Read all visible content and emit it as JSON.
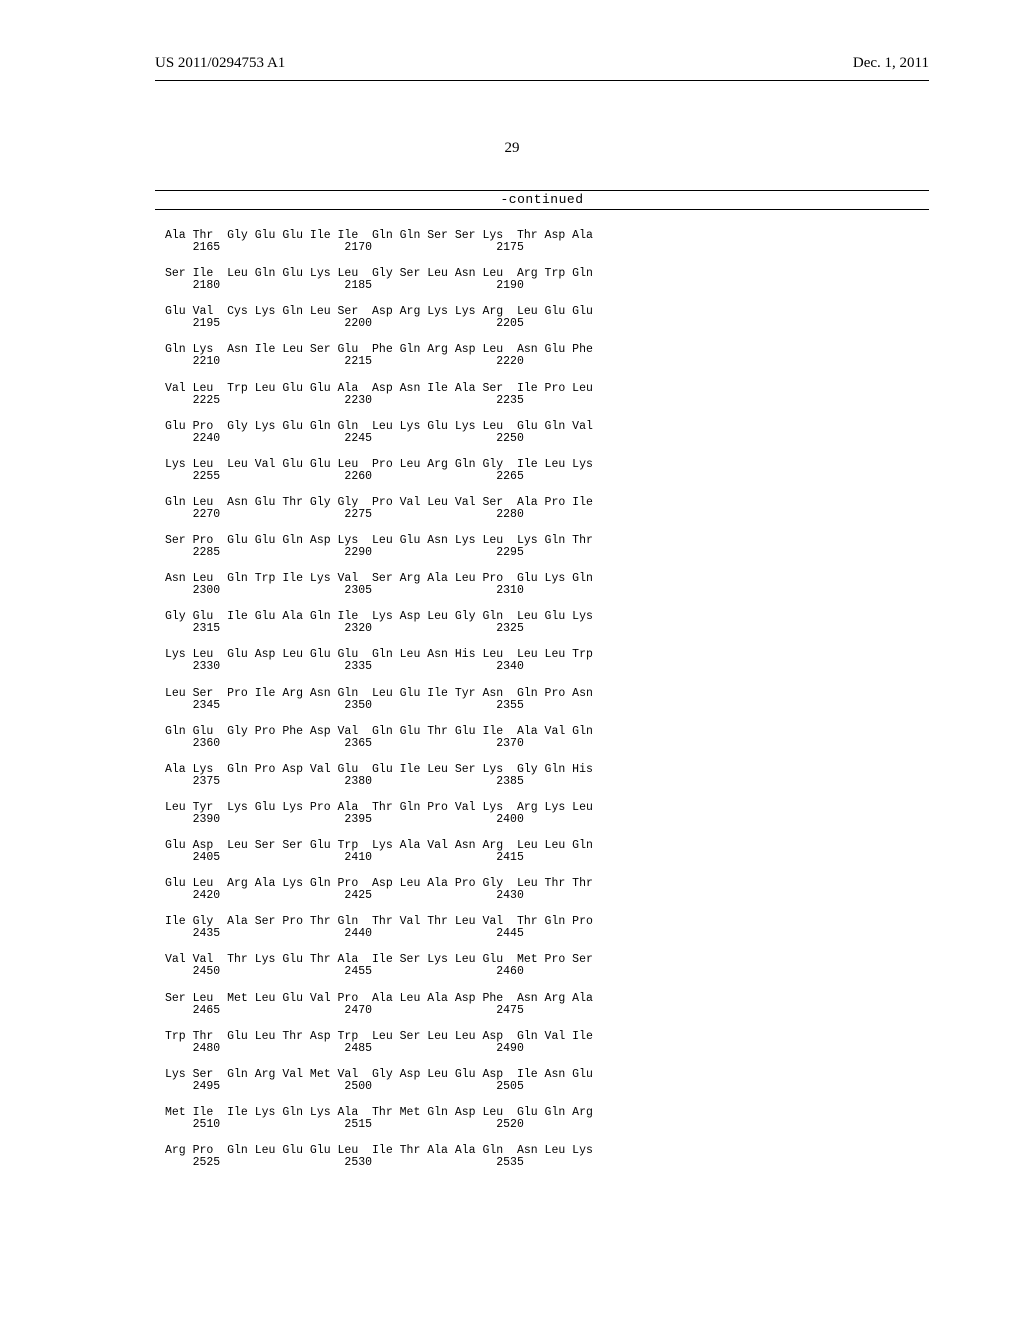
{
  "header": {
    "patent_id": "US 2011/0294753 A1",
    "date": "Dec. 1, 2011"
  },
  "page_number": "29",
  "continued_label": "-continued",
  "sequence": [
    {
      "aa": "Ala Thr  Gly Glu Glu Ile Ile  Gln Gln Ser Ser Lys  Thr Asp Ala",
      "pos": "    2165                  2170                  2175"
    },
    {
      "aa": "Ser Ile  Leu Gln Glu Lys Leu  Gly Ser Leu Asn Leu  Arg Trp Gln",
      "pos": "    2180                  2185                  2190"
    },
    {
      "aa": "Glu Val  Cys Lys Gln Leu Ser  Asp Arg Lys Lys Arg  Leu Glu Glu",
      "pos": "    2195                  2200                  2205"
    },
    {
      "aa": "Gln Lys  Asn Ile Leu Ser Glu  Phe Gln Arg Asp Leu  Asn Glu Phe",
      "pos": "    2210                  2215                  2220"
    },
    {
      "aa": "Val Leu  Trp Leu Glu Glu Ala  Asp Asn Ile Ala Ser  Ile Pro Leu",
      "pos": "    2225                  2230                  2235"
    },
    {
      "aa": "Glu Pro  Gly Lys Glu Gln Gln  Leu Lys Glu Lys Leu  Glu Gln Val",
      "pos": "    2240                  2245                  2250"
    },
    {
      "aa": "Lys Leu  Leu Val Glu Glu Leu  Pro Leu Arg Gln Gly  Ile Leu Lys",
      "pos": "    2255                  2260                  2265"
    },
    {
      "aa": "Gln Leu  Asn Glu Thr Gly Gly  Pro Val Leu Val Ser  Ala Pro Ile",
      "pos": "    2270                  2275                  2280"
    },
    {
      "aa": "Ser Pro  Glu Glu Gln Asp Lys  Leu Glu Asn Lys Leu  Lys Gln Thr",
      "pos": "    2285                  2290                  2295"
    },
    {
      "aa": "Asn Leu  Gln Trp Ile Lys Val  Ser Arg Ala Leu Pro  Glu Lys Gln",
      "pos": "    2300                  2305                  2310"
    },
    {
      "aa": "Gly Glu  Ile Glu Ala Gln Ile  Lys Asp Leu Gly Gln  Leu Glu Lys",
      "pos": "    2315                  2320                  2325"
    },
    {
      "aa": "Lys Leu  Glu Asp Leu Glu Glu  Gln Leu Asn His Leu  Leu Leu Trp",
      "pos": "    2330                  2335                  2340"
    },
    {
      "aa": "Leu Ser  Pro Ile Arg Asn Gln  Leu Glu Ile Tyr Asn  Gln Pro Asn",
      "pos": "    2345                  2350                  2355"
    },
    {
      "aa": "Gln Glu  Gly Pro Phe Asp Val  Gln Glu Thr Glu Ile  Ala Val Gln",
      "pos": "    2360                  2365                  2370"
    },
    {
      "aa": "Ala Lys  Gln Pro Asp Val Glu  Glu Ile Leu Ser Lys  Gly Gln His",
      "pos": "    2375                  2380                  2385"
    },
    {
      "aa": "Leu Tyr  Lys Glu Lys Pro Ala  Thr Gln Pro Val Lys  Arg Lys Leu",
      "pos": "    2390                  2395                  2400"
    },
    {
      "aa": "Glu Asp  Leu Ser Ser Glu Trp  Lys Ala Val Asn Arg  Leu Leu Gln",
      "pos": "    2405                  2410                  2415"
    },
    {
      "aa": "Glu Leu  Arg Ala Lys Gln Pro  Asp Leu Ala Pro Gly  Leu Thr Thr",
      "pos": "    2420                  2425                  2430"
    },
    {
      "aa": "Ile Gly  Ala Ser Pro Thr Gln  Thr Val Thr Leu Val  Thr Gln Pro",
      "pos": "    2435                  2440                  2445"
    },
    {
      "aa": "Val Val  Thr Lys Glu Thr Ala  Ile Ser Lys Leu Glu  Met Pro Ser",
      "pos": "    2450                  2455                  2460"
    },
    {
      "aa": "Ser Leu  Met Leu Glu Val Pro  Ala Leu Ala Asp Phe  Asn Arg Ala",
      "pos": "    2465                  2470                  2475"
    },
    {
      "aa": "Trp Thr  Glu Leu Thr Asp Trp  Leu Ser Leu Leu Asp  Gln Val Ile",
      "pos": "    2480                  2485                  2490"
    },
    {
      "aa": "Lys Ser  Gln Arg Val Met Val  Gly Asp Leu Glu Asp  Ile Asn Glu",
      "pos": "    2495                  2500                  2505"
    },
    {
      "aa": "Met Ile  Ile Lys Gln Lys Ala  Thr Met Gln Asp Leu  Glu Gln Arg",
      "pos": "    2510                  2515                  2520"
    },
    {
      "aa": "Arg Pro  Gln Leu Glu Glu Leu  Ile Thr Ala Ala Gln  Asn Leu Lys",
      "pos": "    2525                  2530                  2535"
    }
  ]
}
